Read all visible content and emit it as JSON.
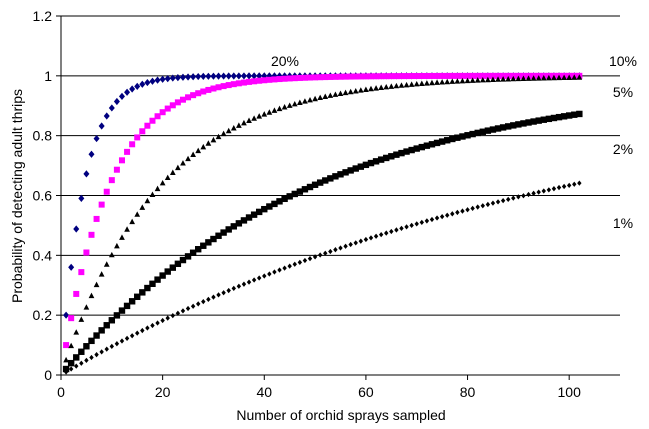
{
  "chart_data": {
    "type": "scatter",
    "title": "",
    "xlabel": "Number of orchid sprays sampled",
    "ylabel": "Probability of detecting adult thrips",
    "xlim": [
      0,
      110
    ],
    "ylim": [
      0,
      1.2
    ],
    "x_ticks": [
      0,
      20,
      40,
      60,
      80,
      100
    ],
    "y_ticks": [
      0,
      0.2,
      0.4,
      0.6,
      0.8,
      1,
      1.2
    ],
    "x_tick_labels": [
      "0",
      "20",
      "40",
      "60",
      "80",
      "100"
    ],
    "y_tick_labels": [
      "0",
      "0.2",
      "0.4",
      "0.6",
      "0.8",
      "1",
      "1.2"
    ],
    "grid": "horizontal",
    "x_range": [
      1,
      102
    ],
    "series": [
      {
        "name": "20%",
        "rate": 0.2,
        "color": "#000080",
        "marker": "diamond"
      },
      {
        "name": "10%",
        "rate": 0.1,
        "color": "#ff00ff",
        "marker": "square"
      },
      {
        "name": "5%",
        "rate": 0.05,
        "color": "#000000",
        "marker": "triangle"
      },
      {
        "name": "2%",
        "rate": 0.02,
        "color": "#000000",
        "marker": "square"
      },
      {
        "name": "1%",
        "rate": 0.01,
        "color": "#000000",
        "marker": "diamond"
      }
    ]
  }
}
